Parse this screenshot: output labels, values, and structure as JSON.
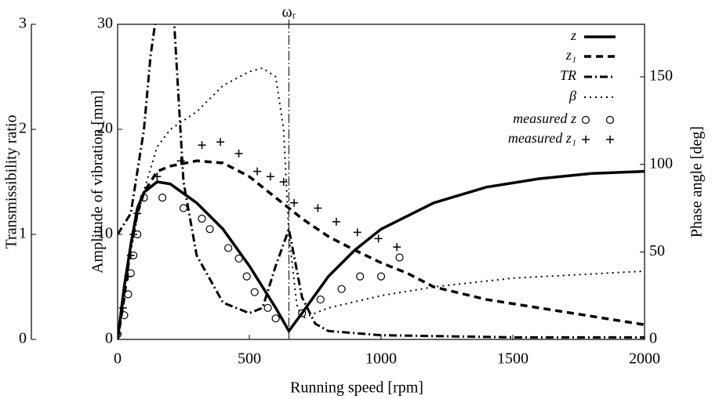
{
  "chart_data": {
    "type": "line",
    "x_label": "Running speed [rpm]",
    "y_label": "Amplitude of vibration [mm]",
    "y2_label": "Phase angle [deg]",
    "y3_label": "Transmissibility  ratio",
    "xlim": [
      0,
      2000
    ],
    "xticks": [
      0,
      500,
      1000,
      1500,
      2000
    ],
    "ylim": [
      0,
      30
    ],
    "yticks": [
      0,
      10,
      20,
      30
    ],
    "y2lim": [
      0,
      180
    ],
    "y2ticks": [
      0,
      50,
      100,
      150
    ],
    "y3lim": [
      0,
      3
    ],
    "y3ticks": [
      0,
      1,
      2,
      3
    ],
    "resonance": {
      "x": 650,
      "label": "ωᵣ"
    },
    "series": [
      {
        "name": "z",
        "style": "solid",
        "color": "#000",
        "axis": "y",
        "x": [
          0,
          25,
          50,
          75,
          100,
          150,
          200,
          300,
          400,
          500,
          600,
          650,
          700,
          800,
          900,
          1000,
          1200,
          1400,
          1600,
          1800,
          2000
        ],
        "values": [
          0,
          5,
          9,
          12.5,
          14,
          15,
          14.8,
          13,
          10.5,
          7,
          3,
          0.8,
          2.5,
          6,
          8.5,
          10.5,
          13,
          14.5,
          15.3,
          15.8,
          16
        ]
      },
      {
        "name": "z₁",
        "style": "dashed",
        "color": "#000",
        "axis": "y",
        "x": [
          0,
          25,
          50,
          75,
          100,
          150,
          200,
          300,
          400,
          500,
          600,
          700,
          800,
          900,
          1000,
          1100,
          1200,
          1400,
          1600,
          1800,
          2000
        ],
        "values": [
          0,
          4,
          9,
          12,
          14,
          16,
          16.5,
          17,
          16.8,
          15.5,
          13.5,
          11.5,
          9.8,
          8.5,
          7.3,
          6.3,
          5,
          3.8,
          3,
          2.2,
          1.4
        ]
      },
      {
        "name": "TR",
        "style": "dashdot",
        "color": "#000",
        "axis": "y3",
        "x": [
          0,
          50,
          100,
          125,
          170,
          215,
          250,
          300,
          400,
          500,
          550,
          600,
          650,
          700,
          750,
          800,
          1000,
          1500,
          2000
        ],
        "values": [
          1.0,
          1.2,
          2,
          2.7,
          3.5,
          3.0,
          1.5,
          0.8,
          0.35,
          0.25,
          0.3,
          0.7,
          1.05,
          0.4,
          0.15,
          0.08,
          0.04,
          0.02,
          0.02
        ]
      },
      {
        "name": "β",
        "style": "dotted",
        "color": "#000",
        "axis": "y2",
        "x": [
          0,
          25,
          50,
          75,
          100,
          150,
          200,
          300,
          400,
          500,
          550,
          600,
          630,
          650,
          680,
          700,
          800,
          1000,
          1200,
          1500,
          2000
        ],
        "values": [
          0,
          30,
          50,
          70,
          85,
          110,
          120,
          130,
          145,
          153,
          155,
          150,
          120,
          60,
          20,
          12,
          18,
          25,
          30,
          35,
          39
        ]
      },
      {
        "name": "measured z",
        "style": "circle",
        "color": "#000",
        "axis": "y",
        "x": [
          0,
          25,
          40,
          50,
          60,
          75,
          100,
          170,
          250,
          320,
          350,
          420,
          460,
          490,
          520,
          570,
          600,
          700,
          770,
          850,
          920,
          1000,
          1070
        ],
        "values": [
          0.5,
          2.3,
          4.3,
          6.3,
          8,
          10,
          13.5,
          13.5,
          12.5,
          11.5,
          10.5,
          8.7,
          7.7,
          6,
          4.5,
          3,
          2,
          2.5,
          3.8,
          4.8,
          6,
          6,
          7.8
        ]
      },
      {
        "name": "measured z₁",
        "style": "plus",
        "color": "#000",
        "axis": "y",
        "x": [
          0,
          20,
          40,
          50,
          60,
          75,
          150,
          240,
          320,
          390,
          460,
          530,
          580,
          630,
          670,
          760,
          830,
          910,
          990,
          1060
        ],
        "values": [
          0.5,
          3,
          6,
          8,
          10,
          12,
          15.5,
          17,
          18.5,
          18.8,
          17.7,
          16,
          15.5,
          15,
          13,
          12.5,
          11.2,
          10.2,
          9.6,
          8.8
        ]
      }
    ]
  }
}
